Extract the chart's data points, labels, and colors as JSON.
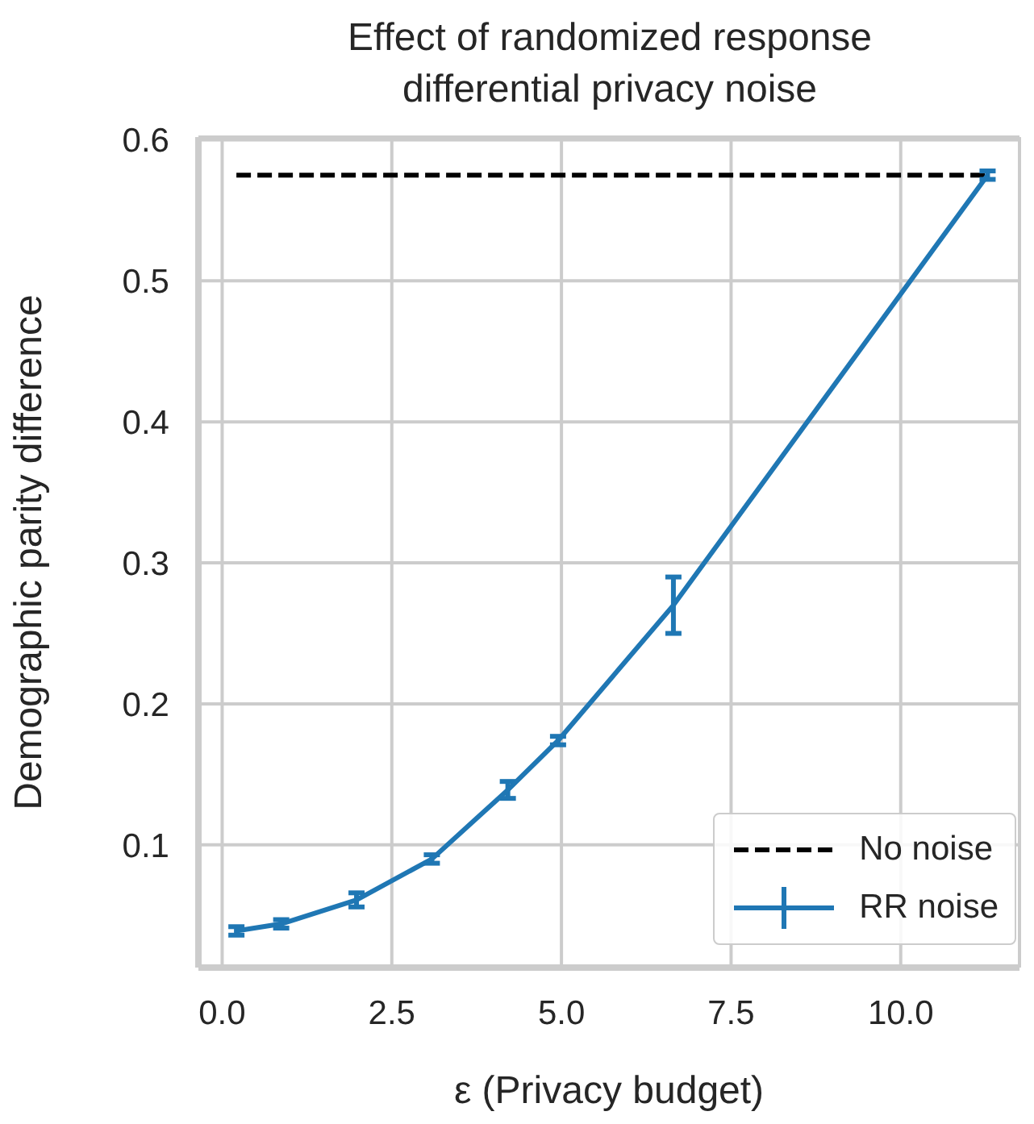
{
  "chart_data": {
    "type": "line",
    "title": "Effect of randomized response\ndifferential privacy noise",
    "xlabel": "ε (Privacy budget)",
    "ylabel": "Demographic parity difference",
    "series": [
      {
        "name": "No noise",
        "color": "#000000",
        "line_style": "dashed",
        "x": [
          0.21,
          11.28
        ],
        "values": [
          0.575,
          0.575
        ]
      },
      {
        "name": "RR noise",
        "color": "#1f77b4",
        "line_style": "solid",
        "x": [
          0.21,
          0.87,
          1.98,
          3.09,
          4.21,
          4.95,
          6.65,
          11.28
        ],
        "values": [
          0.039,
          0.044,
          0.061,
          0.09,
          0.139,
          0.174,
          0.27,
          0.575
        ],
        "errors": [
          0.003,
          0.003,
          0.005,
          0.003,
          0.006,
          0.003,
          0.02,
          0.003
        ]
      }
    ],
    "xlim": [
      -0.35,
      11.75
    ],
    "xticks": [
      {
        "value": 0,
        "label": "0.0"
      },
      {
        "value": 2.5,
        "label": "2.5"
      },
      {
        "value": 5,
        "label": "5.0"
      },
      {
        "value": 7.5,
        "label": "7.5"
      },
      {
        "value": 10,
        "label": "10.0"
      }
    ],
    "ylim": [
      0.013,
      0.602
    ],
    "yticks": [
      0.1,
      0.2,
      0.3,
      0.4,
      0.5,
      0.6
    ],
    "grid": true,
    "legend": "bottom right"
  }
}
